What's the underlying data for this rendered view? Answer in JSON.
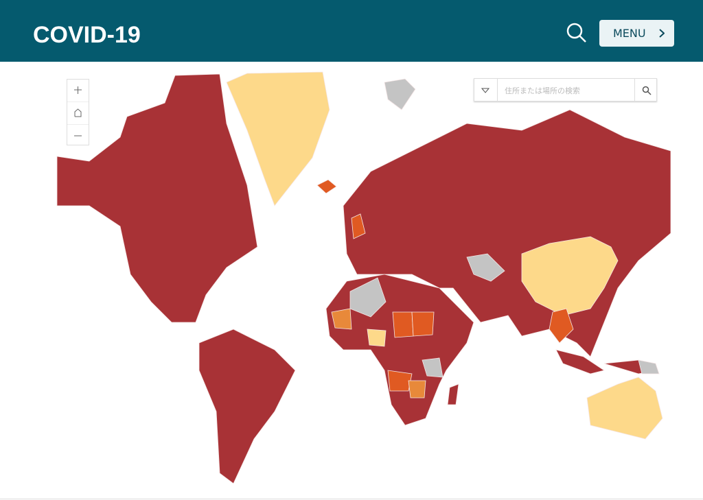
{
  "header": {
    "title": "COVID-19",
    "menu": "MENU"
  },
  "search": {
    "placeholder": "住所または場所の検索"
  }
}
